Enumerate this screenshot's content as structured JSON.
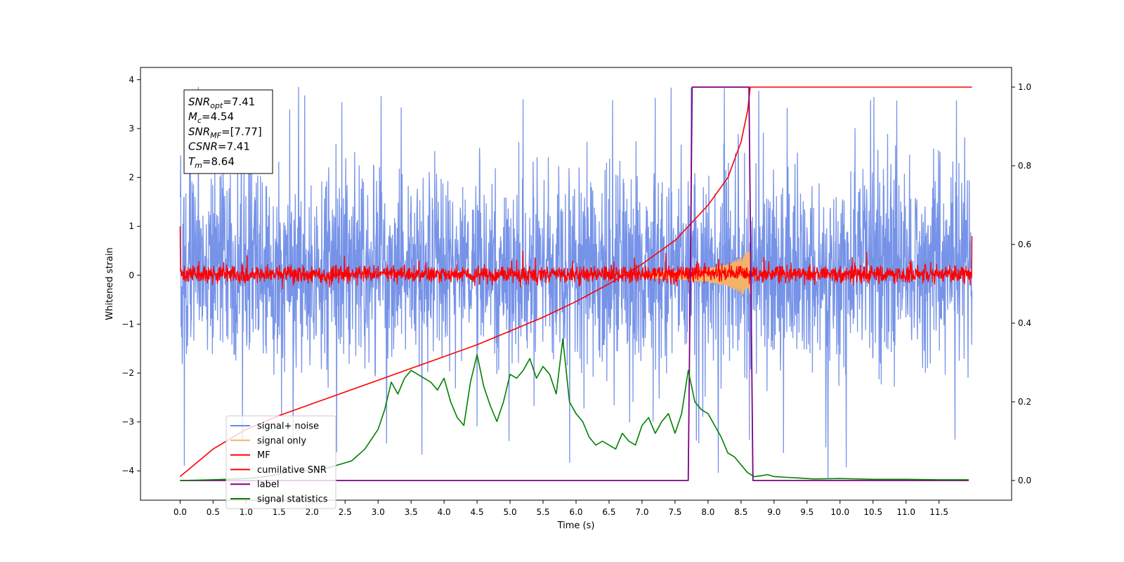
{
  "chart_data": {
    "type": "line",
    "xlabel": "Time (s)",
    "ylabel": "Whitened strain",
    "ylabel_right": "",
    "xlim": [
      -0.6,
      12.6
    ],
    "ylim": [
      -4.6,
      4.25
    ],
    "ylim_right": [
      -0.05,
      1.05
    ],
    "x_ticks": [
      0.0,
      0.5,
      1.0,
      1.5,
      2.0,
      2.5,
      3.0,
      3.5,
      4.0,
      4.5,
      5.0,
      5.5,
      6.0,
      6.5,
      7.0,
      7.5,
      8.0,
      8.5,
      9.0,
      9.5,
      10.0,
      10.5,
      11.0,
      11.5
    ],
    "x_tick_labels": [
      "0.0",
      "0.5",
      "1.0",
      "1.5",
      "2.0",
      "2.5",
      "3.0",
      "3.5",
      "4.0",
      "4.5",
      "5.0",
      "5.5",
      "6.0",
      "6.5",
      "7.0",
      "7.5",
      "8.0",
      "8.5",
      "9.0",
      "9.5",
      "10.0",
      "10.5",
      "11.0",
      "11.5"
    ],
    "y_ticks": [
      4,
      3,
      2,
      1,
      0,
      -1,
      -2,
      -3,
      -4
    ],
    "y_tick_labels": [
      "4",
      "3",
      "2",
      "1",
      "0",
      "−1",
      "−2",
      "−3",
      "−4"
    ],
    "y_right_ticks": [
      1.0,
      0.8,
      0.6,
      0.4,
      0.2,
      0.0
    ],
    "y_right_tick_labels": [
      "1.0",
      "0.8",
      "0.6",
      "0.4",
      "0.2",
      "0.0"
    ],
    "grid": false,
    "legend_position": "lower-left",
    "legend": [
      {
        "label": "signal+ noise",
        "color": "#6a8ae6"
      },
      {
        "label": "signal only",
        "color": "#f5b36a"
      },
      {
        "label": "MF",
        "color": "#ff0000"
      },
      {
        "label": "cumilative SNR",
        "color": "#ff0000"
      },
      {
        "label": "label",
        "color": "#800080"
      },
      {
        "label": "signal statistics",
        "color": "#008000"
      }
    ],
    "annotation_box": {
      "lines": [
        {
          "base": "SNR",
          "sub": "opt",
          "value": "=7.41"
        },
        {
          "base": "M",
          "sub": "c",
          "value": "=4.54"
        },
        {
          "base": "SNR",
          "sub": "MF",
          "value": "=[7.77]"
        },
        {
          "base": "CSNR",
          "sub": "",
          "value": "=7.41"
        },
        {
          "base": "T",
          "sub": "m",
          "value": "=8.64"
        }
      ]
    },
    "series": [
      {
        "name": "signal+ noise",
        "axis": "left",
        "color": "#6a8ae6",
        "x_range": [
          0.0,
          12.0
        ],
        "noise_envelope": {
          "typical_low": -2.0,
          "typical_high": 2.5,
          "max_peak": 3.85,
          "min_trough": -4.15
        }
      },
      {
        "name": "signal only",
        "axis": "left",
        "color": "#f5b36a",
        "x_range": [
          7.0,
          8.64
        ],
        "envelope_amplitude": {
          "x": [
            7.0,
            7.5,
            8.0,
            8.3,
            8.5,
            8.64
          ],
          "amp": [
            0.05,
            0.08,
            0.15,
            0.22,
            0.38,
            0.5
          ]
        }
      },
      {
        "name": "MF",
        "axis": "left",
        "color": "#ff0000",
        "x_range": [
          0.0,
          12.0
        ],
        "noise_envelope": {
          "typical_low": -0.2,
          "typical_high": 0.25,
          "start_value": 1.0,
          "end_value": 0.8
        }
      },
      {
        "name": "cumilative SNR",
        "axis": "right",
        "color": "#ff0000",
        "x": [
          0.0,
          0.5,
          1.0,
          1.5,
          2.0,
          2.5,
          3.0,
          3.5,
          4.0,
          4.5,
          5.0,
          5.5,
          6.0,
          6.5,
          7.0,
          7.5,
          8.0,
          8.3,
          8.5,
          8.6,
          8.64,
          8.65,
          12.0
        ],
        "y": [
          0.01,
          0.08,
          0.13,
          0.165,
          0.195,
          0.225,
          0.255,
          0.285,
          0.315,
          0.345,
          0.38,
          0.415,
          0.455,
          0.5,
          0.55,
          0.61,
          0.7,
          0.77,
          0.86,
          0.94,
          1.0,
          1.0,
          1.0
        ]
      },
      {
        "name": "label",
        "axis": "right",
        "color": "#800080",
        "x": [
          0.0,
          7.7,
          7.76,
          8.62,
          8.68,
          11.95
        ],
        "y": [
          0.0,
          0.0,
          1.0,
          1.0,
          0.0,
          0.0
        ]
      },
      {
        "name": "signal statistics",
        "axis": "right",
        "color": "#008000",
        "x": [
          0.0,
          0.5,
          1.0,
          1.3,
          1.6,
          1.9,
          2.2,
          2.4,
          2.6,
          2.8,
          3.0,
          3.1,
          3.2,
          3.3,
          3.4,
          3.5,
          3.6,
          3.7,
          3.8,
          3.9,
          4.0,
          4.1,
          4.2,
          4.3,
          4.4,
          4.5,
          4.6,
          4.7,
          4.8,
          4.9,
          5.0,
          5.1,
          5.2,
          5.3,
          5.4,
          5.5,
          5.6,
          5.7,
          5.8,
          5.9,
          6.0,
          6.1,
          6.2,
          6.3,
          6.4,
          6.5,
          6.6,
          6.7,
          6.8,
          6.9,
          7.0,
          7.1,
          7.2,
          7.3,
          7.4,
          7.5,
          7.6,
          7.7,
          7.8,
          7.9,
          8.0,
          8.1,
          8.2,
          8.3,
          8.4,
          8.5,
          8.6,
          8.7,
          8.8,
          8.9,
          9.0,
          9.2,
          9.4,
          9.6,
          10.0,
          10.5,
          11.0,
          11.5,
          11.95
        ],
        "y": [
          0.0,
          0.002,
          0.005,
          0.01,
          0.02,
          0.025,
          0.03,
          0.04,
          0.05,
          0.08,
          0.13,
          0.18,
          0.25,
          0.22,
          0.26,
          0.28,
          0.27,
          0.26,
          0.25,
          0.23,
          0.26,
          0.2,
          0.16,
          0.14,
          0.25,
          0.32,
          0.24,
          0.19,
          0.15,
          0.2,
          0.27,
          0.26,
          0.28,
          0.31,
          0.26,
          0.29,
          0.27,
          0.22,
          0.36,
          0.2,
          0.17,
          0.15,
          0.11,
          0.09,
          0.1,
          0.09,
          0.08,
          0.12,
          0.1,
          0.09,
          0.14,
          0.16,
          0.12,
          0.15,
          0.17,
          0.12,
          0.17,
          0.28,
          0.2,
          0.18,
          0.17,
          0.14,
          0.11,
          0.07,
          0.06,
          0.04,
          0.02,
          0.01,
          0.012,
          0.015,
          0.01,
          0.008,
          0.006,
          0.004,
          0.005,
          0.003,
          0.003,
          0.002,
          0.002
        ]
      }
    ]
  }
}
